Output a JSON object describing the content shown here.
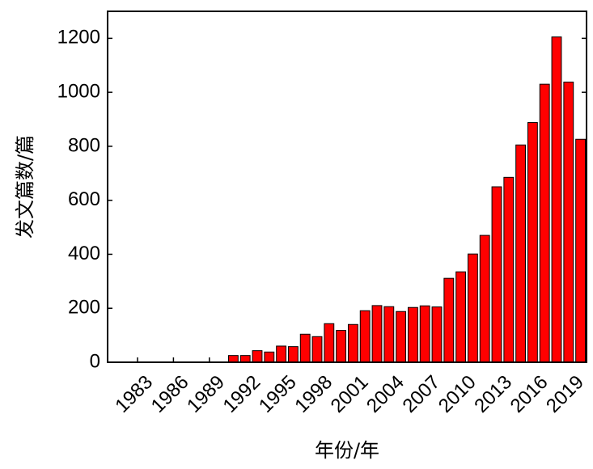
{
  "chart_data": {
    "type": "bar",
    "x_label": "年份/年",
    "y_label": "发文篇数/篇",
    "categories": [
      null,
      null,
      "1983",
      null,
      null,
      "1986",
      null,
      null,
      "1989",
      null,
      null,
      "1992",
      null,
      null,
      "1995",
      null,
      null,
      "1998",
      null,
      null,
      "2001",
      null,
      null,
      "2004",
      null,
      null,
      "2007",
      null,
      null,
      "2010",
      null,
      null,
      "2013",
      null,
      null,
      "2016",
      null,
      null,
      "2019",
      null
    ],
    "values": [
      0,
      0,
      0,
      0,
      0,
      0,
      0,
      0,
      0,
      0,
      25,
      25,
      43,
      38,
      60,
      58,
      104,
      95,
      143,
      118,
      140,
      191,
      210,
      206,
      188,
      203,
      209,
      205,
      311,
      335,
      401,
      470,
      650,
      685,
      805,
      888,
      1030,
      1205,
      1038,
      826
    ],
    "color": "#ff0000",
    "ylim": [
      0,
      1300
    ],
    "yticks": [
      0,
      200,
      400,
      600,
      800,
      1000,
      1200
    ]
  }
}
